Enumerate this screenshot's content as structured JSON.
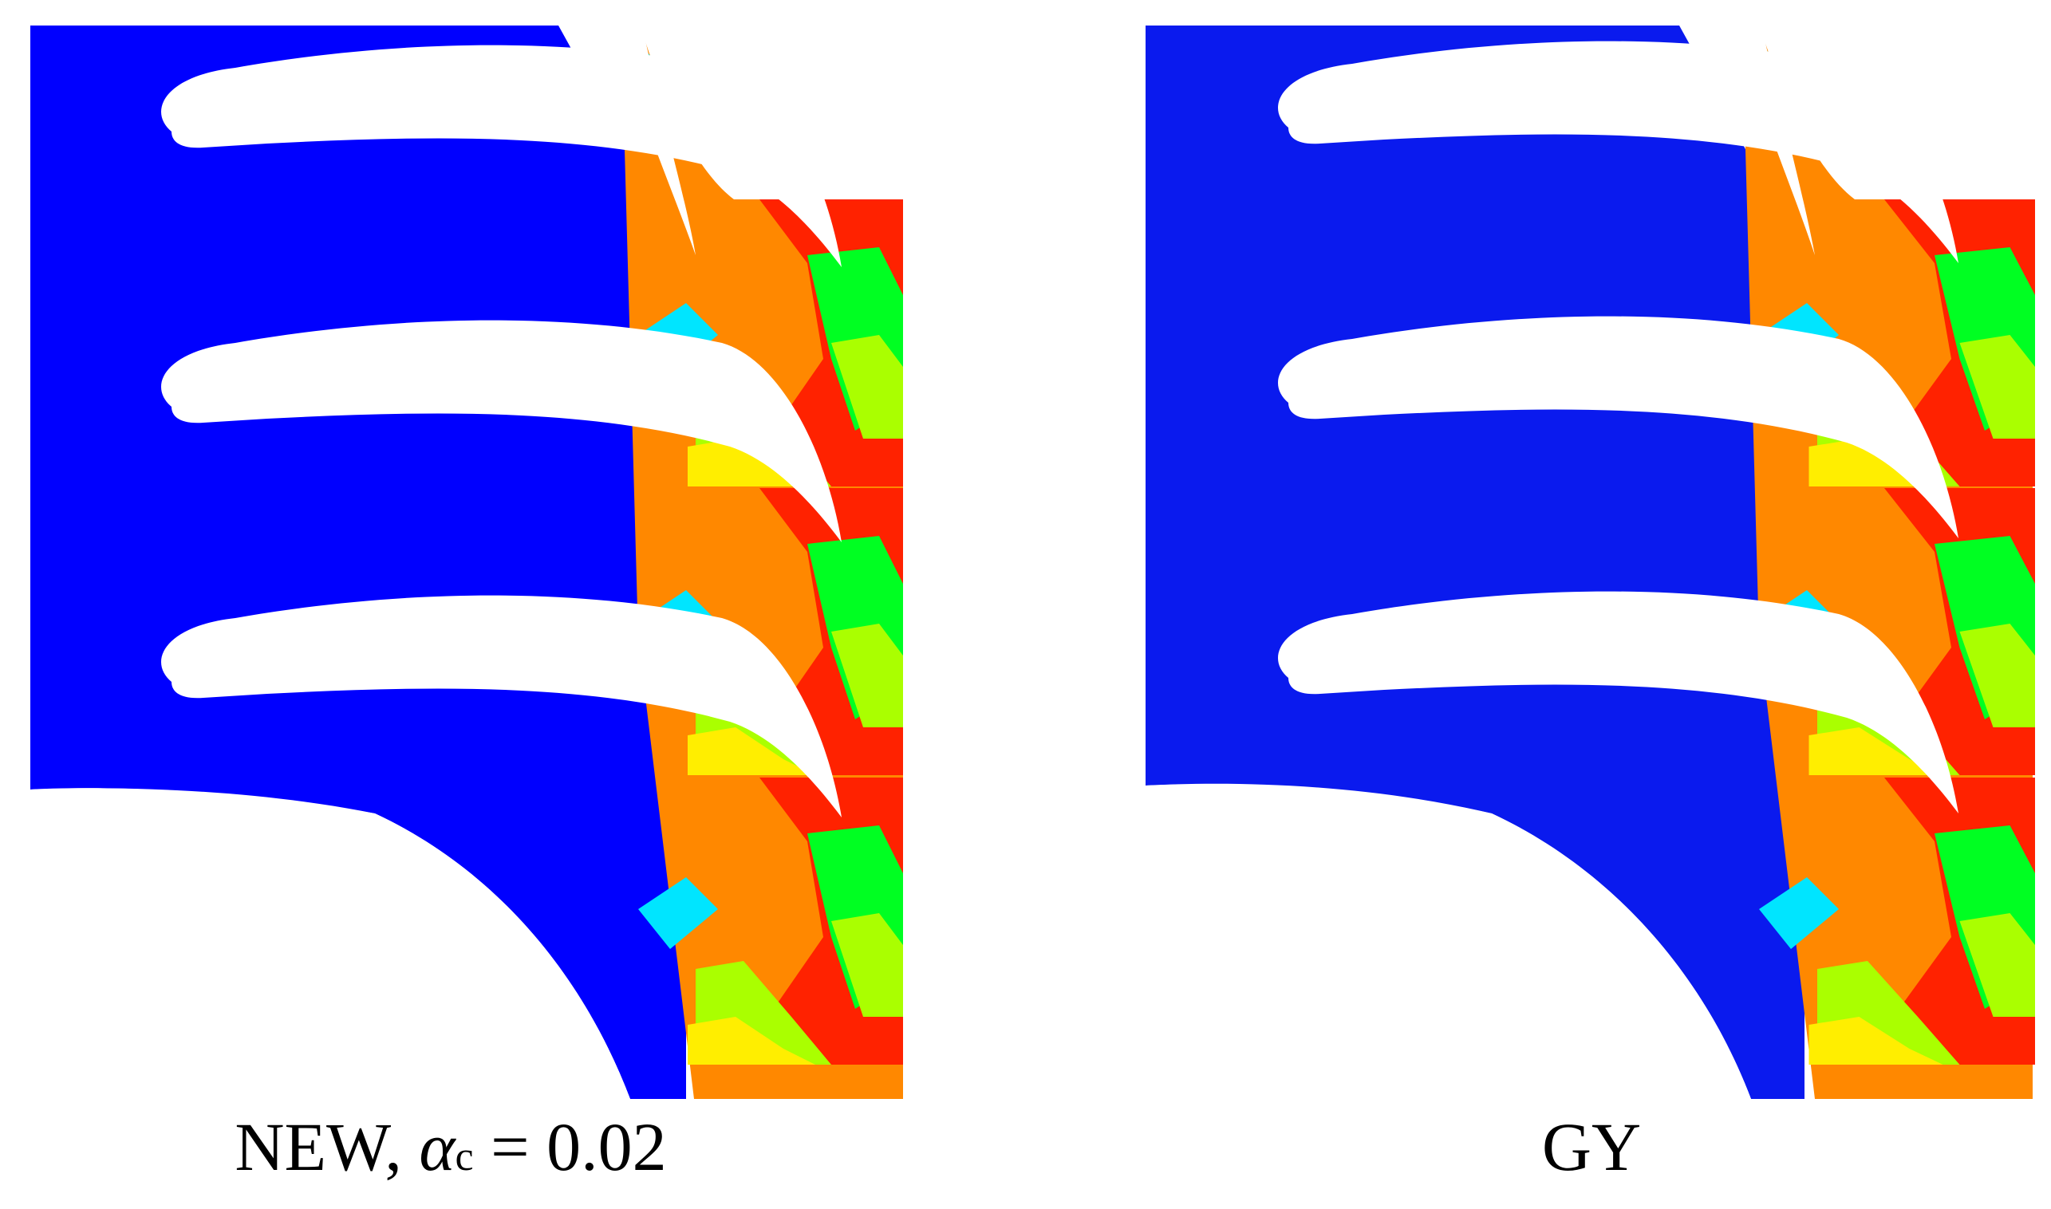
{
  "panels": [
    {
      "id": "left",
      "caption": {
        "method": "NEW,",
        "symbol": "α",
        "subscript": "c",
        "relation": "= 0.02"
      }
    },
    {
      "id": "right",
      "caption": {
        "method": "GY"
      }
    }
  ],
  "colors": {
    "inlet_blue": "#0000ff",
    "cyan": "#00e5ff",
    "green": "#00ff22",
    "lime": "#aaff00",
    "yellow": "#ffee00",
    "orange": "#ff8800",
    "red": "#ff2200",
    "blade": "#ffffff"
  }
}
